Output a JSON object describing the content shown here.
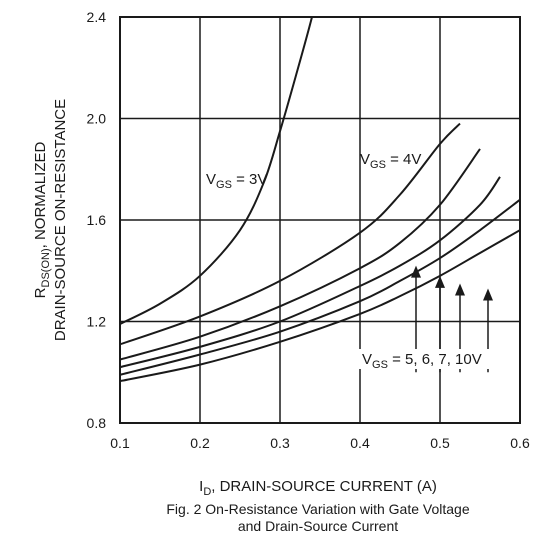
{
  "chart_data": {
    "type": "line",
    "title": "",
    "caption_line1": "Fig. 2  On-Resistance Variation with Gate Voltage",
    "caption_line2": "and Drain-Source Current",
    "xlabel": {
      "main": "I",
      "sub": "D",
      "rest": ", DRAIN-SOURCE CURRENT (A)"
    },
    "ylabel": {
      "line1_main": "R",
      "line1_sub": "DS(ON)",
      "line1_rest": ", NORMALIZED",
      "line2": "DRAIN-SOURCE ON-RESISTANCE"
    },
    "xlim": [
      0.1,
      0.6
    ],
    "ylim": [
      0.8,
      2.4
    ],
    "xticks": [
      "0.1",
      "0.2",
      "0.3",
      "0.4",
      "0.5",
      "0.6"
    ],
    "yticks": [
      "0.8",
      "1.2",
      "1.6",
      "2.0",
      "2.4"
    ],
    "grid": true,
    "series": [
      {
        "name": "VGS = 3V",
        "x": [
          0.1,
          0.15,
          0.2,
          0.25,
          0.28,
          0.3,
          0.32,
          0.34,
          0.355
        ],
        "y": [
          1.19,
          1.27,
          1.38,
          1.56,
          1.75,
          1.95,
          2.17,
          2.4,
          2.6
        ]
      },
      {
        "name": "VGS = 4V",
        "x": [
          0.1,
          0.2,
          0.3,
          0.4,
          0.45,
          0.5,
          0.525
        ],
        "y": [
          1.11,
          1.22,
          1.36,
          1.55,
          1.7,
          1.9,
          1.98
        ]
      },
      {
        "name": "VGS = 5V",
        "x": [
          0.1,
          0.2,
          0.3,
          0.4,
          0.45,
          0.5,
          0.55
        ],
        "y": [
          1.05,
          1.14,
          1.26,
          1.41,
          1.51,
          1.66,
          1.88
        ]
      },
      {
        "name": "VGS = 6V",
        "x": [
          0.1,
          0.2,
          0.3,
          0.4,
          0.45,
          0.5,
          0.55,
          0.575
        ],
        "y": [
          1.02,
          1.1,
          1.2,
          1.34,
          1.42,
          1.52,
          1.66,
          1.77
        ]
      },
      {
        "name": "VGS = 7V",
        "x": [
          0.1,
          0.2,
          0.3,
          0.4,
          0.45,
          0.5,
          0.55,
          0.6
        ],
        "y": [
          0.99,
          1.07,
          1.16,
          1.28,
          1.36,
          1.45,
          1.56,
          1.68
        ]
      },
      {
        "name": "VGS = 10V",
        "x": [
          0.1,
          0.2,
          0.3,
          0.4,
          0.45,
          0.5,
          0.55,
          0.6
        ],
        "y": [
          0.965,
          1.03,
          1.12,
          1.23,
          1.3,
          1.38,
          1.47,
          1.56
        ]
      }
    ],
    "annotations": [
      {
        "id": "vgs3",
        "main": "V",
        "sub": "GS",
        "rest": " = 3V"
      },
      {
        "id": "vgs4",
        "main": "V",
        "sub": "GS",
        "rest": " = 4V"
      },
      {
        "id": "vgs5",
        "main": "V",
        "sub": "GS",
        "rest": " = 5, 6, 7, 10V"
      }
    ],
    "arrows": [
      {
        "x": 0.47,
        "from_y": 1.0,
        "to_y": 1.42
      },
      {
        "x": 0.5,
        "from_y": 1.0,
        "to_y": 1.38
      },
      {
        "x": 0.525,
        "from_y": 1.0,
        "to_y": 1.35
      },
      {
        "x": 0.56,
        "from_y": 1.0,
        "to_y": 1.33
      }
    ]
  }
}
